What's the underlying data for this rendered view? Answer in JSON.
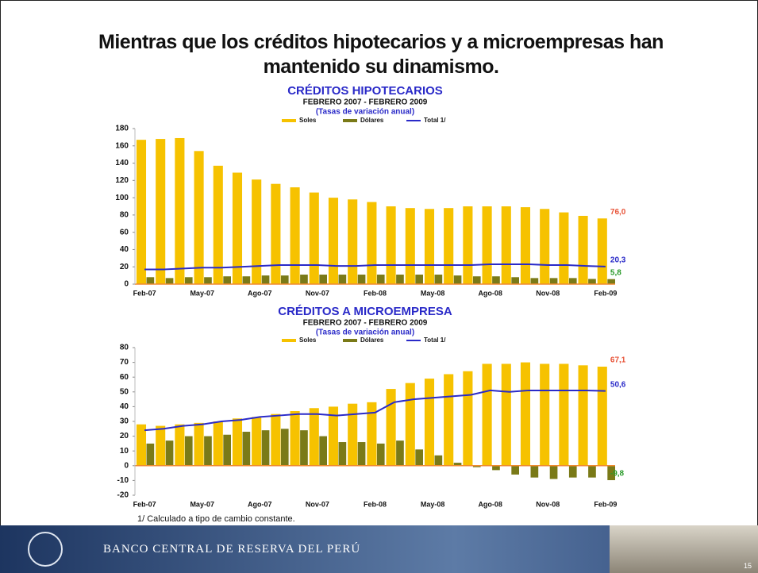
{
  "slide": {
    "title": "Mientras que los créditos hipotecarios y a microempresas han mantenido su dinamismo.",
    "footnote": "1/ Calculado a tipo de cambio constante.",
    "footer": "BANCO CENTRAL DE RESERVA DEL PERÚ",
    "page_number": "15"
  },
  "chart_data": [
    {
      "type": "bar",
      "title": "CRÉDITOS HIPOTECARIOS",
      "subtitle": "FEBRERO 2007 - FEBRERO 2009",
      "units_note": "(Tasas de variación anual)",
      "categories": [
        "Feb-07",
        null,
        null,
        "May-07",
        null,
        null,
        "Ago-07",
        null,
        null,
        "Nov-07",
        null,
        null,
        "Feb-08",
        null,
        null,
        "May-08",
        null,
        null,
        "Ago-08",
        null,
        null,
        "Nov-08",
        null,
        null,
        "Feb-09"
      ],
      "ylim": [
        0,
        180
      ],
      "yticks": [
        0,
        20,
        40,
        60,
        80,
        100,
        120,
        140,
        160,
        180
      ],
      "series": [
        {
          "name": "Soles",
          "color": "#f6c200",
          "label_color": "#e8553a",
          "values": [
            167,
            168,
            169,
            154,
            137,
            129,
            121,
            116,
            112,
            106,
            100,
            98,
            95,
            90,
            88,
            87,
            88,
            90,
            90,
            90,
            89,
            87,
            83,
            79,
            76.0
          ],
          "value_labels": [
            null,
            null,
            null,
            null,
            null,
            null,
            null,
            null,
            null,
            null,
            null,
            null,
            null,
            null,
            null,
            null,
            null,
            null,
            null,
            null,
            null,
            null,
            null,
            null,
            "76,0"
          ]
        },
        {
          "name": "Dólares",
          "color": "#7a7a18",
          "label_color": "#2a9a2a",
          "values": [
            8,
            7,
            8,
            8,
            9,
            9,
            10,
            10,
            11,
            11,
            11,
            11,
            11,
            11,
            11,
            11,
            10,
            9,
            9,
            8,
            7,
            7,
            7,
            6,
            5.8
          ],
          "value_labels": [
            null,
            null,
            null,
            null,
            null,
            null,
            null,
            null,
            null,
            null,
            null,
            null,
            null,
            null,
            null,
            null,
            null,
            null,
            null,
            null,
            null,
            null,
            null,
            null,
            "5,8"
          ]
        },
        {
          "name": "Total 1/",
          "color": "#2a2ac8",
          "label_color": "#2a2ac8",
          "type": "line",
          "values": [
            17,
            17,
            18,
            19,
            19,
            20,
            21,
            22,
            22,
            22,
            21,
            21,
            22,
            22,
            22,
            22,
            22,
            22,
            23,
            23,
            23,
            22,
            22,
            21,
            20.3
          ],
          "value_labels": [
            null,
            null,
            null,
            null,
            null,
            null,
            null,
            null,
            null,
            null,
            null,
            null,
            null,
            null,
            null,
            null,
            null,
            null,
            null,
            null,
            null,
            null,
            null,
            null,
            "20,3"
          ]
        }
      ]
    },
    {
      "type": "bar",
      "title": "CRÉDITOS A MICROEMPRESA",
      "subtitle": "FEBRERO 2007 - FEBRERO 2009",
      "units_note": "(Tasas de variación anual)",
      "categories": [
        "Feb-07",
        null,
        null,
        "May-07",
        null,
        null,
        "Ago-07",
        null,
        null,
        "Nov-07",
        null,
        null,
        "Feb-08",
        null,
        null,
        "May-08",
        null,
        null,
        "Ago-08",
        null,
        null,
        "Nov-08",
        null,
        null,
        "Feb-09"
      ],
      "ylim": [
        -20,
        80
      ],
      "yticks": [
        -20,
        -10,
        0,
        10,
        20,
        30,
        40,
        50,
        60,
        70,
        80
      ],
      "series": [
        {
          "name": "Soles",
          "color": "#f6c200",
          "label_color": "#e8553a",
          "values": [
            28,
            27,
            28,
            29,
            30,
            32,
            33,
            35,
            37,
            39,
            40,
            42,
            43,
            52,
            56,
            59,
            62,
            64,
            69,
            69,
            70,
            69,
            69,
            68,
            67.1
          ],
          "value_labels": [
            null,
            null,
            null,
            null,
            null,
            null,
            null,
            null,
            null,
            null,
            null,
            null,
            null,
            null,
            null,
            null,
            null,
            null,
            null,
            null,
            null,
            null,
            null,
            null,
            "67,1"
          ]
        },
        {
          "name": "Dólares",
          "color": "#7a7a18",
          "label_color": "#2a9a2a",
          "values": [
            15,
            17,
            20,
            20,
            21,
            23,
            24,
            25,
            24,
            20,
            16,
            16,
            15,
            17,
            11,
            7,
            2,
            -1,
            -3,
            -6,
            -8,
            -9,
            -8,
            -8,
            -9.8
          ],
          "value_labels": [
            null,
            null,
            null,
            null,
            null,
            null,
            null,
            null,
            null,
            null,
            null,
            null,
            null,
            null,
            null,
            null,
            null,
            null,
            null,
            null,
            null,
            null,
            null,
            null,
            "-9,8"
          ]
        },
        {
          "name": "Total 1/",
          "color": "#2a2ac8",
          "label_color": "#2a2ac8",
          "type": "line",
          "values": [
            24,
            25,
            27,
            28,
            30,
            31,
            33,
            34,
            35,
            35,
            34,
            35,
            36,
            43,
            45,
            46,
            47,
            48,
            51,
            50,
            51,
            51,
            51,
            51,
            50.6
          ],
          "value_labels": [
            null,
            null,
            null,
            null,
            null,
            null,
            null,
            null,
            null,
            null,
            null,
            null,
            null,
            null,
            null,
            null,
            null,
            null,
            null,
            null,
            null,
            null,
            null,
            null,
            "50,6"
          ]
        }
      ]
    }
  ]
}
